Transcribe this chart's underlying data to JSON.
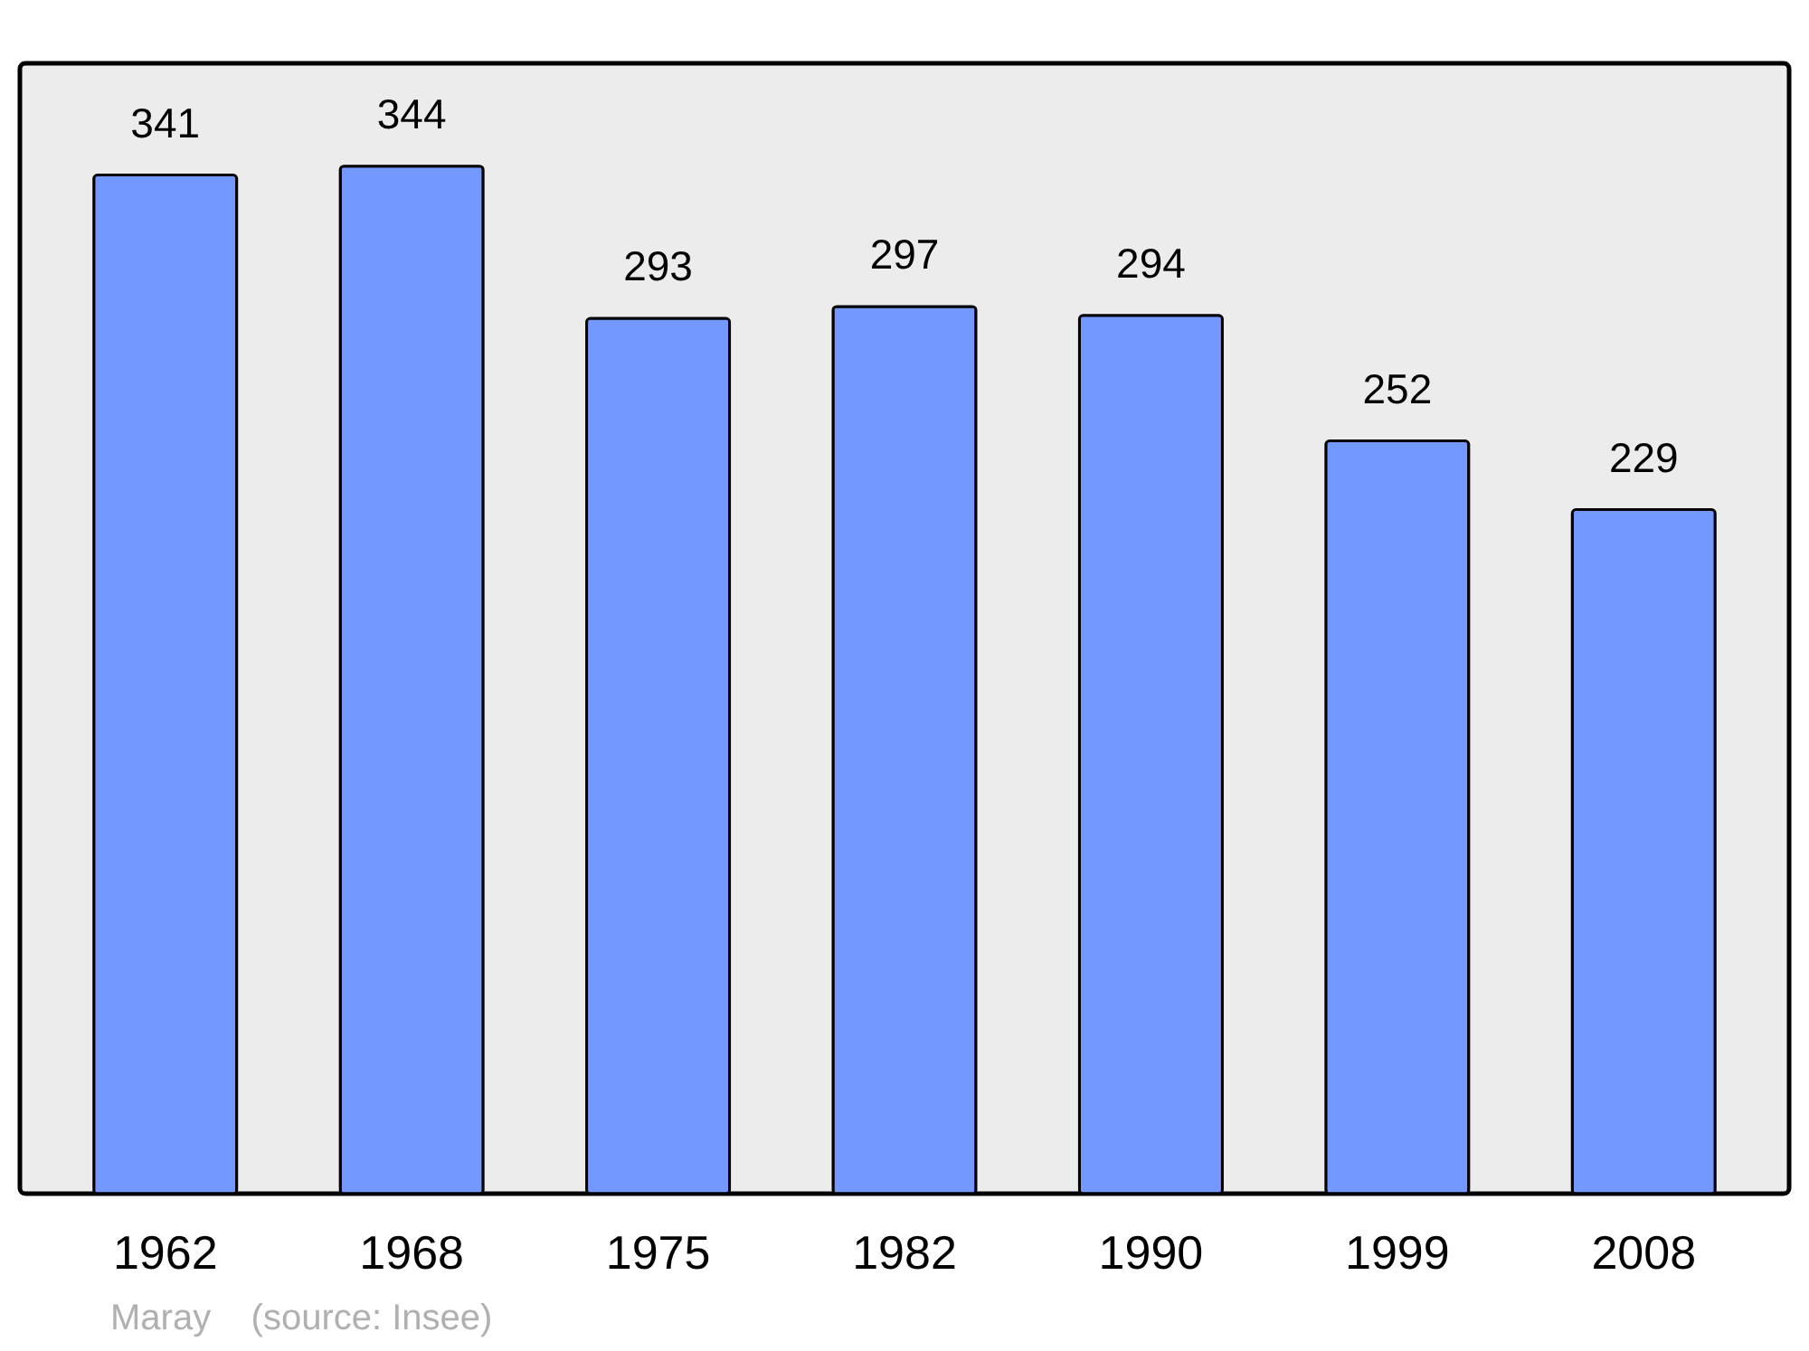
{
  "chart_data": {
    "type": "bar",
    "categories": [
      "1962",
      "1968",
      "1975",
      "1982",
      "1990",
      "1999",
      "2008"
    ],
    "values": [
      341,
      344,
      293,
      297,
      294,
      252,
      229
    ],
    "color": "#7399ff",
    "data_labels": true,
    "annotations": [
      "Maray    (source: Insee)"
    ]
  }
}
